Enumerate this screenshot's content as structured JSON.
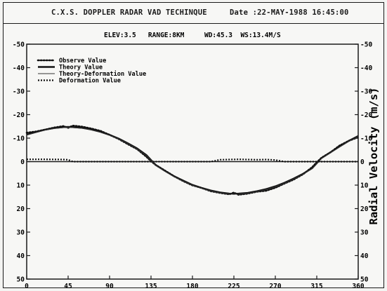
{
  "header": {
    "title": "C.X.S. DOPPLER RADAR VAD TECHINQUE",
    "date": "Date :22-MAY-1988 16:45:00"
  },
  "chart_data": {
    "type": "line",
    "params": "ELEV:3.5   RANGE:8KM     WD:45.3  WS:13.4M/S",
    "ylabel": "Radial Velocity (m/s)",
    "xlim": [
      0,
      360
    ],
    "ylim": [
      -50,
      50
    ],
    "y_inverted": true,
    "x_ticks": [
      0,
      45,
      90,
      135,
      180,
      225,
      270,
      315,
      360
    ],
    "y_ticks_left": [
      -50,
      -40,
      -30,
      -20,
      -10,
      0,
      10,
      20,
      30,
      40,
      50
    ],
    "y_ticks_right": [
      -50,
      -40,
      -30,
      -20,
      -10,
      0,
      10,
      20,
      30,
      40,
      50
    ],
    "grid": false,
    "legend_position": "top-left",
    "series": [
      {
        "name": "Observe Value",
        "style": "dotted",
        "x": [
          0,
          10,
          20,
          30,
          40,
          45,
          50,
          60,
          70,
          80,
          90,
          100,
          110,
          120,
          130,
          135,
          140,
          150,
          160,
          170,
          180,
          190,
          200,
          210,
          220,
          225,
          230,
          240,
          250,
          260,
          270,
          280,
          290,
          300,
          310,
          315,
          320,
          330,
          340,
          350,
          360
        ],
        "y": [
          -12.3,
          -12.8,
          -13.6,
          -14.5,
          -15.1,
          -14.4,
          -15.3,
          -14.9,
          -14.1,
          -13.1,
          -11.4,
          -9.6,
          -7.4,
          -5.3,
          -2.1,
          -0.2,
          1.4,
          3.8,
          6.2,
          8.3,
          10.1,
          11.2,
          12.6,
          13.3,
          13.9,
          13.2,
          14.1,
          13.6,
          12.8,
          12.4,
          11.1,
          9.3,
          7.6,
          5.4,
          2.4,
          0.3,
          -1.6,
          -4.0,
          -6.9,
          -8.9,
          -10.4
        ]
      },
      {
        "name": "Theory  Value",
        "style": "solid-thick",
        "x": [
          0,
          10,
          20,
          30,
          40,
          45,
          50,
          60,
          70,
          80,
          90,
          100,
          110,
          120,
          130,
          135,
          140,
          150,
          160,
          170,
          180,
          190,
          200,
          210,
          220,
          225,
          230,
          240,
          250,
          260,
          270,
          280,
          290,
          300,
          310,
          315,
          320,
          330,
          340,
          350,
          360
        ],
        "y": [
          -11.5,
          -12.6,
          -13.6,
          -14.3,
          -14.7,
          -14.8,
          -14.7,
          -14.4,
          -13.7,
          -12.7,
          -11.4,
          -9.8,
          -7.8,
          -5.6,
          -2.8,
          -0.7,
          1.4,
          3.9,
          6.2,
          8.1,
          9.9,
          11.2,
          12.3,
          13.1,
          13.6,
          13.7,
          13.6,
          13.3,
          12.6,
          11.7,
          10.5,
          9.0,
          7.2,
          5.2,
          2.8,
          0.7,
          -1.5,
          -4.0,
          -6.5,
          -8.9,
          -10.9
        ]
      },
      {
        "name": "Theory-Deformation Value",
        "style": "solid-thin",
        "x": [
          0,
          10,
          20,
          30,
          40,
          45,
          50,
          60,
          70,
          80,
          90,
          100,
          110,
          120,
          130,
          135,
          140,
          150,
          160,
          170,
          180,
          190,
          200,
          210,
          220,
          225,
          230,
          240,
          250,
          260,
          270,
          280,
          290,
          300,
          310,
          315,
          320,
          330,
          340,
          350,
          360
        ],
        "y": [
          -11.3,
          -12.4,
          -13.4,
          -14.1,
          -14.5,
          -14.6,
          -14.5,
          -14.2,
          -13.5,
          -12.5,
          -11.2,
          -9.6,
          -7.6,
          -5.4,
          -2.6,
          -0.5,
          1.6,
          4.1,
          6.4,
          8.3,
          10.1,
          11.4,
          12.5,
          13.3,
          13.8,
          13.9,
          13.8,
          13.5,
          12.8,
          11.9,
          10.7,
          9.2,
          7.4,
          5.4,
          3.0,
          0.9,
          -1.3,
          -3.8,
          -6.3,
          -8.7,
          -10.7
        ]
      },
      {
        "name": "Deformation Value",
        "style": "dashed",
        "x": [
          0,
          20,
          40,
          45,
          50,
          200,
          210,
          220,
          230,
          240,
          250,
          260,
          270,
          280,
          360
        ],
        "y": [
          -1.0,
          -1.0,
          -0.9,
          -0.8,
          0,
          0,
          -0.8,
          -0.9,
          -1.0,
          -0.9,
          -0.8,
          -0.9,
          -0.7,
          0,
          0
        ]
      }
    ]
  }
}
